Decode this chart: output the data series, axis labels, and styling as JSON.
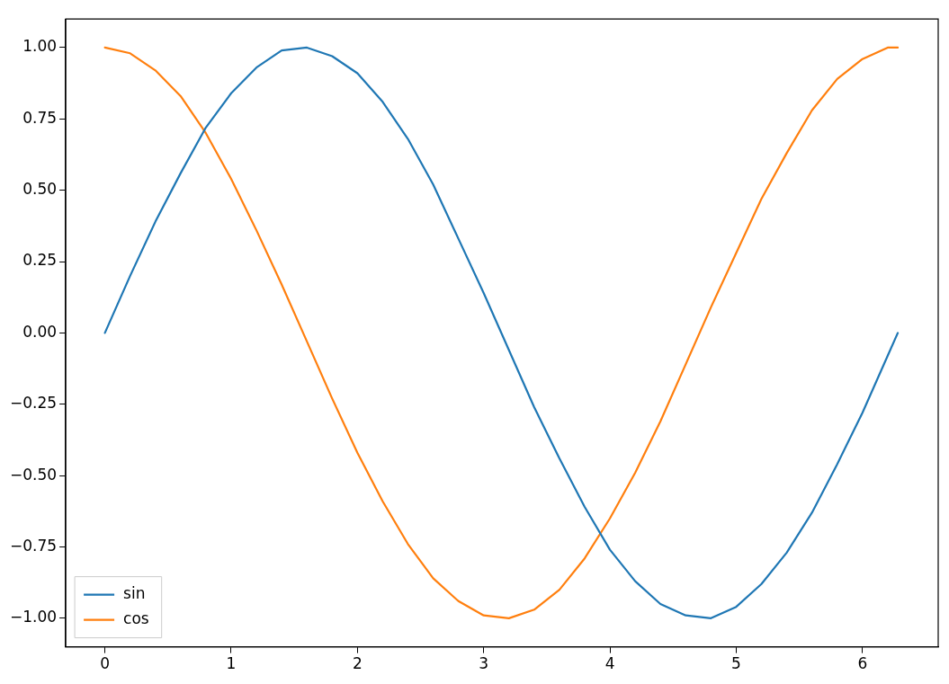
{
  "chart_data": {
    "type": "line",
    "x": [
      0,
      0.2,
      0.4,
      0.6,
      0.8,
      1.0,
      1.2,
      1.4,
      1.6,
      1.8,
      2.0,
      2.2,
      2.4,
      2.6,
      2.8,
      3.0,
      3.2,
      3.4,
      3.6,
      3.8,
      4.0,
      4.2,
      4.4,
      4.6,
      4.8,
      5.0,
      5.2,
      5.4,
      5.6,
      5.8,
      6.0,
      6.2,
      6.28
    ],
    "series": [
      {
        "name": "sin",
        "color": "#1f77b4",
        "values": [
          0,
          0.2,
          0.39,
          0.56,
          0.72,
          0.84,
          0.93,
          0.99,
          1.0,
          0.97,
          0.91,
          0.81,
          0.68,
          0.52,
          0.33,
          0.14,
          -0.06,
          -0.26,
          -0.44,
          -0.61,
          -0.76,
          -0.87,
          -0.95,
          -0.99,
          -1.0,
          -0.96,
          -0.88,
          -0.77,
          -0.63,
          -0.46,
          -0.28,
          -0.08,
          0
        ]
      },
      {
        "name": "cos",
        "color": "#ff7f0e",
        "values": [
          1,
          0.98,
          0.92,
          0.83,
          0.7,
          0.54,
          0.36,
          0.17,
          -0.03,
          -0.23,
          -0.42,
          -0.59,
          -0.74,
          -0.86,
          -0.94,
          -0.99,
          -1.0,
          -0.97,
          -0.9,
          -0.79,
          -0.65,
          -0.49,
          -0.31,
          -0.11,
          0.09,
          0.28,
          0.47,
          0.63,
          0.78,
          0.89,
          0.96,
          1.0,
          1
        ]
      }
    ],
    "xlim": [
      -0.31,
      6.6
    ],
    "xticks": [
      0,
      1,
      2,
      3,
      4,
      5,
      6
    ],
    "ylim": [
      -1.1,
      1.1
    ],
    "yticks": [
      {
        "value": -1,
        "label": "−1.00"
      },
      {
        "value": -0.75,
        "label": "−0.75"
      },
      {
        "value": -0.5,
        "label": "−0.50"
      },
      {
        "value": -0.25,
        "label": "−0.25"
      },
      {
        "value": 0,
        "label": "0.00"
      },
      {
        "value": 0.25,
        "label": "0.25"
      },
      {
        "value": 0.5,
        "label": "0.50"
      },
      {
        "value": 0.75,
        "label": "0.75"
      },
      {
        "value": 1,
        "label": "1.00"
      }
    ],
    "grid": false,
    "legend": "bottom left",
    "marker": "none",
    "line_style": "solid"
  }
}
